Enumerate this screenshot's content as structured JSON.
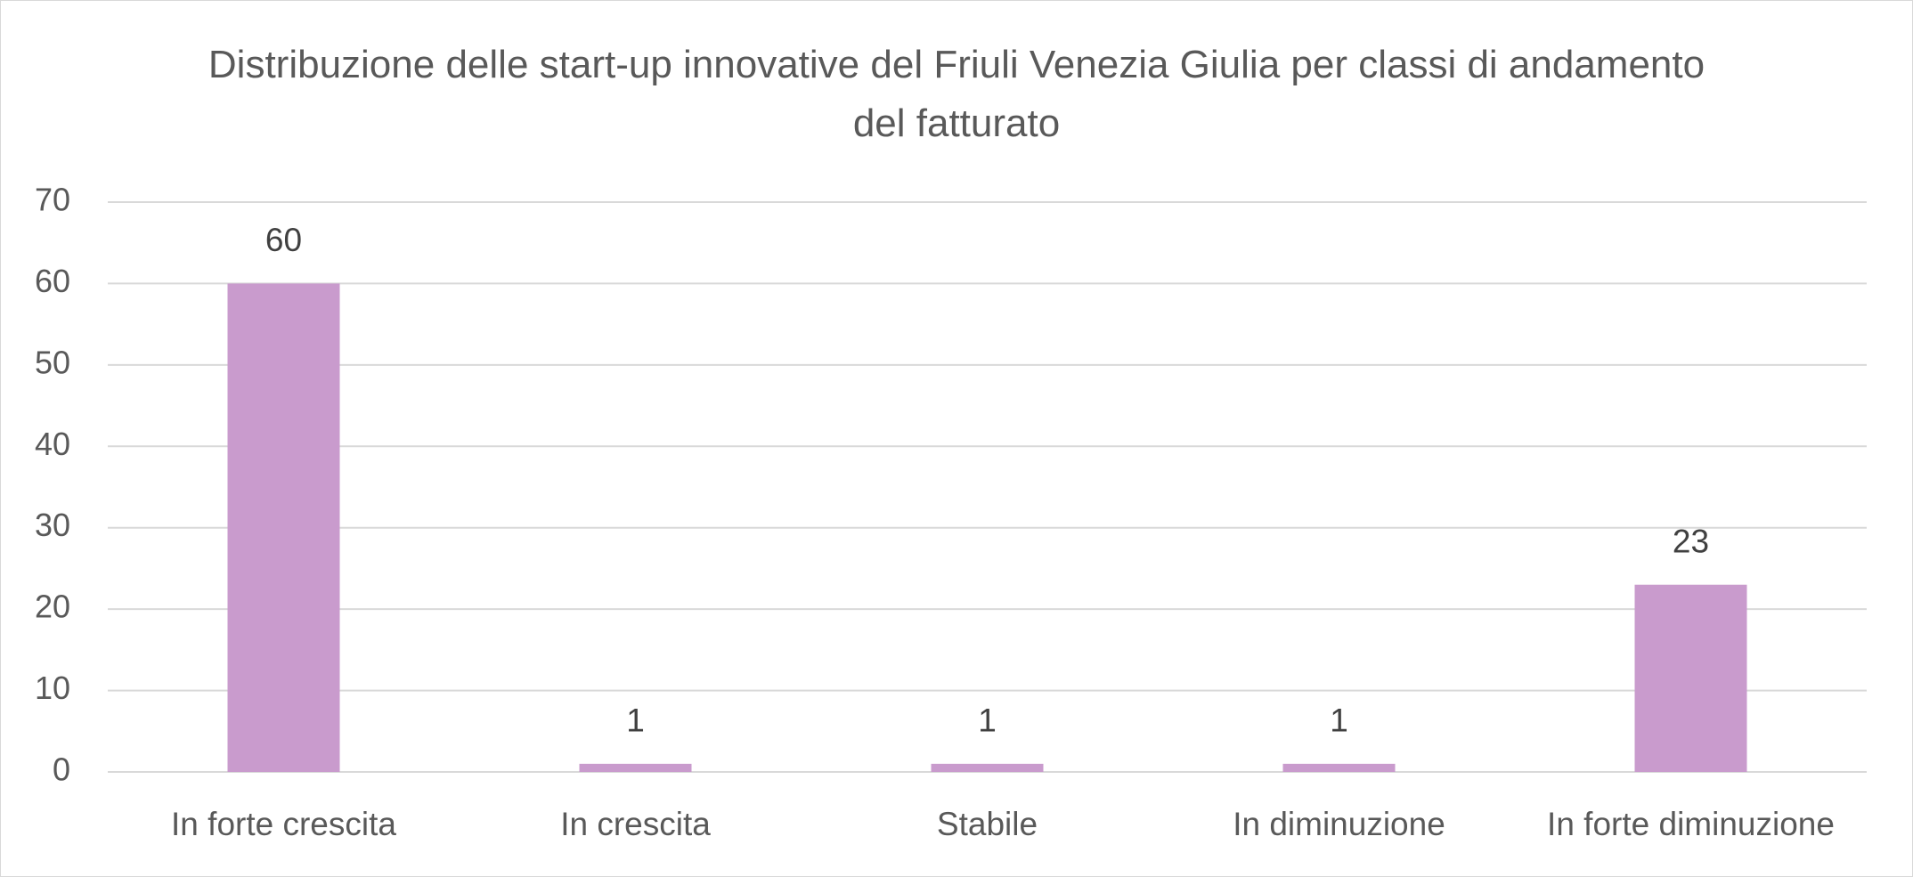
{
  "chart_data": {
    "type": "bar",
    "title": "Distribuzione delle start-up innovative del Friuli Venezia Giulia per classi di andamento del fatturato",
    "categories": [
      "In forte crescita",
      "In crescita",
      "Stabile",
      "In diminuzione",
      "In forte diminuzione"
    ],
    "values": [
      60,
      1,
      1,
      1,
      23
    ],
    "color": "#c99bcd",
    "ylim": [
      0,
      70
    ],
    "yticks": [
      0,
      10,
      20,
      30,
      40,
      50,
      60,
      70
    ],
    "grid": true
  }
}
